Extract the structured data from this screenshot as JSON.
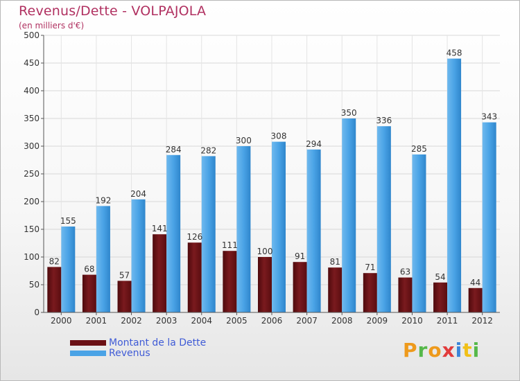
{
  "title": "Revenus/Dette - VOLPAJOLA",
  "subtitle": "(en milliers d'€)",
  "colors": {
    "accent": "#b03060",
    "dette": "#6b1014",
    "revenus": "#4aa3e6",
    "legend_text": "#3f5bd6"
  },
  "legend": [
    {
      "label": "Montant de la Dette",
      "color": "#6b1014"
    },
    {
      "label": "Revenus",
      "color": "#4aa3e6"
    }
  ],
  "logo": {
    "letters": [
      "P",
      "r",
      "o",
      "x",
      "i",
      "t",
      "i"
    ],
    "colors": [
      "#ee9a1c",
      "#56b84a",
      "#ee9a1c",
      "#e23c3c",
      "#3d86d9",
      "#f1c018",
      "#56b84a"
    ]
  },
  "chart_data": {
    "type": "bar",
    "title": "Revenus/Dette - VOLPAJOLA",
    "subtitle": "(en milliers d'€)",
    "categories": [
      "2000",
      "2001",
      "2002",
      "2003",
      "2004",
      "2005",
      "2006",
      "2007",
      "2008",
      "2009",
      "2010",
      "2011",
      "2012"
    ],
    "series": [
      {
        "name": "Montant de la Dette",
        "values": [
          82,
          68,
          57,
          141,
          126,
          111,
          100,
          91,
          81,
          71,
          63,
          54,
          44
        ]
      },
      {
        "name": "Revenus",
        "values": [
          155,
          192,
          204,
          284,
          282,
          300,
          308,
          294,
          350,
          336,
          285,
          458,
          343
        ]
      }
    ],
    "ylim": [
      0,
      500
    ],
    "yticks": [
      0,
      50,
      100,
      150,
      200,
      250,
      300,
      350,
      400,
      450,
      500
    ],
    "grid": true,
    "legend_position": "bottom-left"
  }
}
